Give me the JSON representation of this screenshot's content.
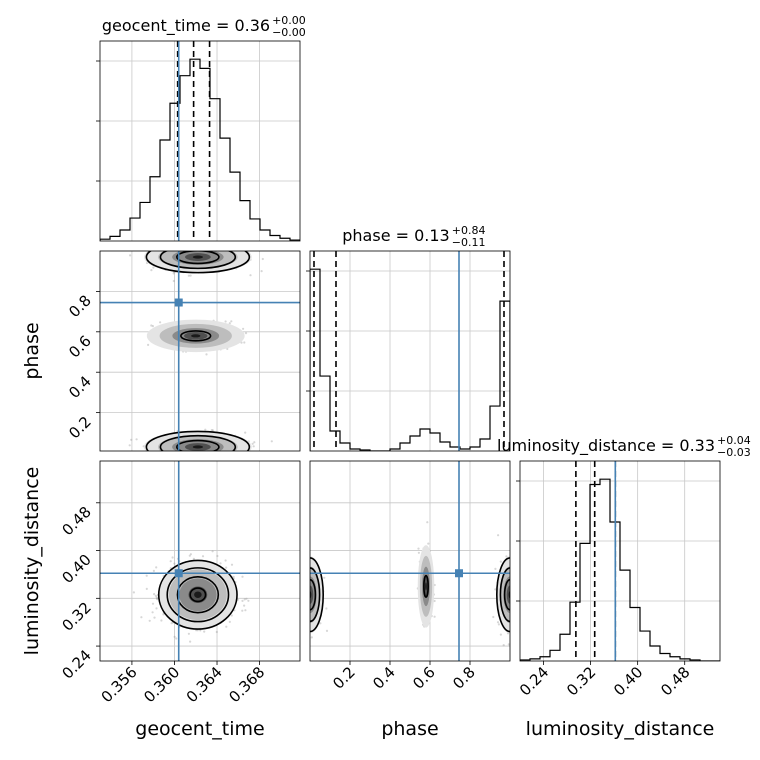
{
  "figure": {
    "background": "#ffffff",
    "truth_color": "#4682b4"
  },
  "chart_data": {
    "type": "corner",
    "parameters": [
      "geocent_time",
      "phase",
      "luminosity_distance"
    ],
    "truths": {
      "geocent_time": 0.3604,
      "phase": 0.745,
      "luminosity_distance": 0.362
    },
    "titles": [
      {
        "param": "geocent_time",
        "name": "geocent_time",
        "median": "0.36",
        "plus": "+0.00",
        "minus": "−0.00"
      },
      {
        "param": "phase",
        "name": "phase",
        "median": "0.13",
        "plus": "+0.84",
        "minus": "−0.11"
      },
      {
        "param": "luminosity_distance",
        "name": "luminosity_distance",
        "median": "0.33",
        "plus": "+0.04",
        "minus": "−0.03"
      }
    ],
    "axis_labels": {
      "x": [
        "geocent_time",
        "phase",
        "luminosity_distance"
      ],
      "y": [
        "phase",
        "luminosity_distance"
      ]
    },
    "ranges": {
      "geocent_time": [
        0.353,
        0.3718
      ],
      "phase": [
        0.0,
        1.0
      ],
      "luminosity_distance": [
        0.2,
        0.54
      ],
      "luminosity_distance_2d": [
        0.215,
        0.55
      ],
      "phase_2d": [
        0.01,
        1.0
      ]
    },
    "ticks": {
      "geocent_time": {
        "values": [
          0.356,
          0.36,
          0.364,
          0.368
        ],
        "labels": [
          "0.356",
          "0.360",
          "0.364",
          "0.368"
        ]
      },
      "phase": {
        "values": [
          0.2,
          0.4,
          0.6,
          0.8
        ],
        "labels": [
          "0.2",
          "0.4",
          "0.6",
          "0.8"
        ]
      },
      "luminosity_distance": {
        "values": [
          0.24,
          0.32,
          0.4,
          0.48
        ],
        "labels": [
          "0.24",
          "0.32",
          "0.40",
          "0.48"
        ]
      }
    },
    "histograms": {
      "geocent_time": {
        "edges": [
          0.353,
          0.35394,
          0.35488,
          0.35582,
          0.35676,
          0.3577,
          0.35864,
          0.35958,
          0.36052,
          0.36146,
          0.3624,
          0.36334,
          0.36428,
          0.36522,
          0.36616,
          0.3671,
          0.36804,
          0.36898,
          0.36992,
          0.37086,
          0.3718
        ],
        "counts": [
          2,
          5,
          12,
          25,
          42,
          70,
          110,
          150,
          180,
          198,
          188,
          155,
          112,
          75,
          44,
          24,
          12,
          6,
          3,
          1
        ],
        "quantiles": [
          0.3603,
          0.3618,
          0.3633
        ]
      },
      "phase": {
        "edges": [
          0.0,
          0.05,
          0.1,
          0.15,
          0.2,
          0.25,
          0.3,
          0.35,
          0.4,
          0.45,
          0.5,
          0.55,
          0.6,
          0.65,
          0.7,
          0.75,
          0.8,
          0.85,
          0.9,
          0.95,
          1.0
        ],
        "counts": [
          182,
          75,
          20,
          8,
          2,
          1,
          0,
          0,
          2,
          8,
          15,
          22,
          18,
          9,
          4,
          2,
          4,
          12,
          45,
          150
        ],
        "quantiles": [
          0.02,
          0.13,
          0.97
        ]
      },
      "luminosity_distance": {
        "edges": [
          0.2,
          0.217,
          0.234,
          0.251,
          0.268,
          0.285,
          0.302,
          0.319,
          0.336,
          0.353,
          0.37,
          0.387,
          0.404,
          0.421,
          0.438,
          0.455,
          0.472,
          0.489,
          0.506,
          0.523,
          0.54
        ],
        "counts": [
          1,
          2,
          4,
          10,
          25,
          55,
          110,
          165,
          170,
          130,
          85,
          50,
          28,
          14,
          7,
          4,
          2,
          1,
          0,
          0
        ],
        "quantiles": [
          0.295,
          0.327,
          0.362
        ]
      }
    },
    "pairs": [
      {
        "x": "geocent_time",
        "y": "phase"
      },
      {
        "x": "geocent_time",
        "y": "luminosity_distance"
      },
      {
        "x": "phase",
        "y": "luminosity_distance"
      }
    ]
  }
}
